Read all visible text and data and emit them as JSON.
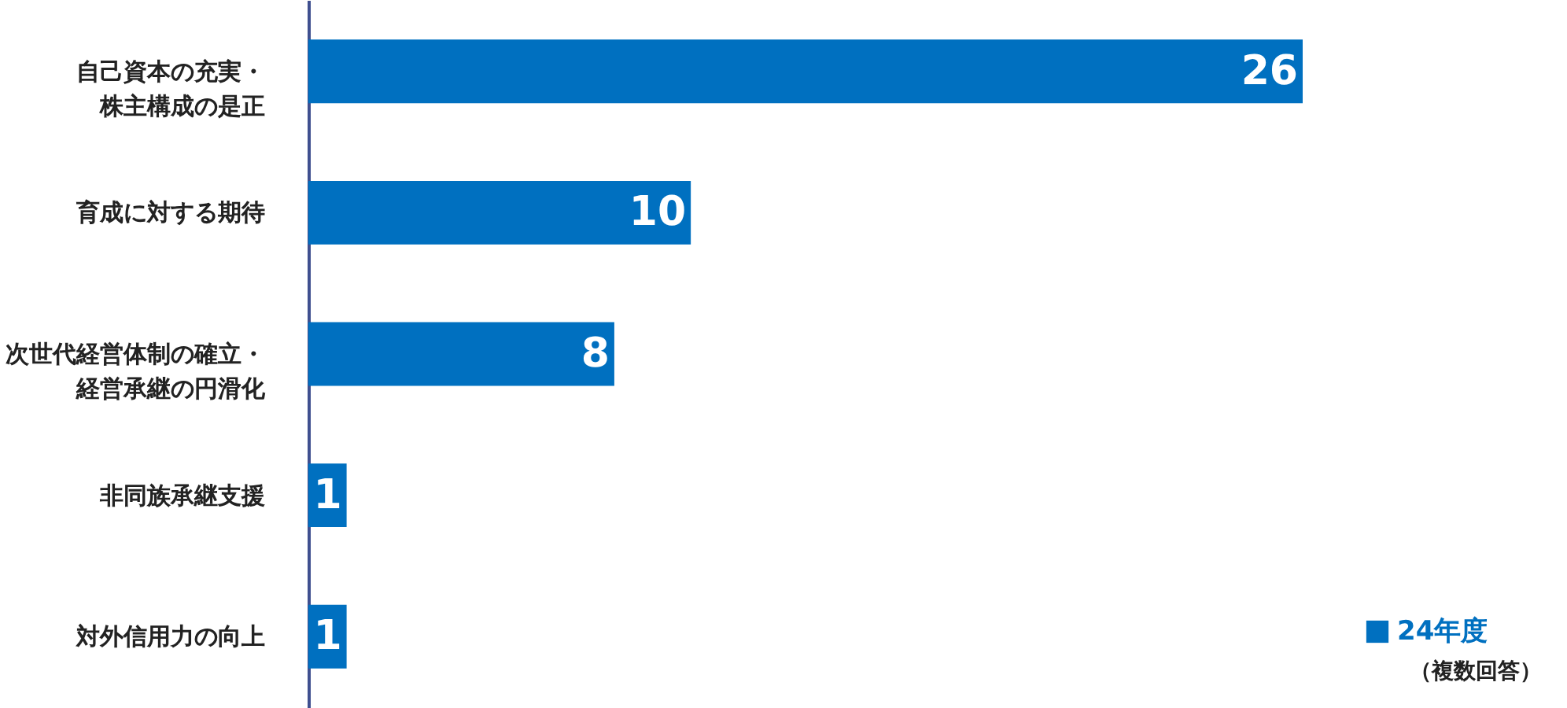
{
  "chart_data": {
    "type": "bar",
    "orientation": "horizontal",
    "categories": [
      "自己資本の充実・株主構成の是正",
      "育成に対する期待",
      "次世代経営体制の確立・経営承継の円滑化",
      "非同族承継支援",
      "対外信用力の向上"
    ],
    "series": [
      {
        "name": "24年度",
        "color": "#0070c0",
        "values": [
          26,
          10,
          8,
          1,
          1
        ]
      }
    ],
    "data_labels": true,
    "legend": "bottom right",
    "annotations": [
      "（複数回答）"
    ]
  }
}
